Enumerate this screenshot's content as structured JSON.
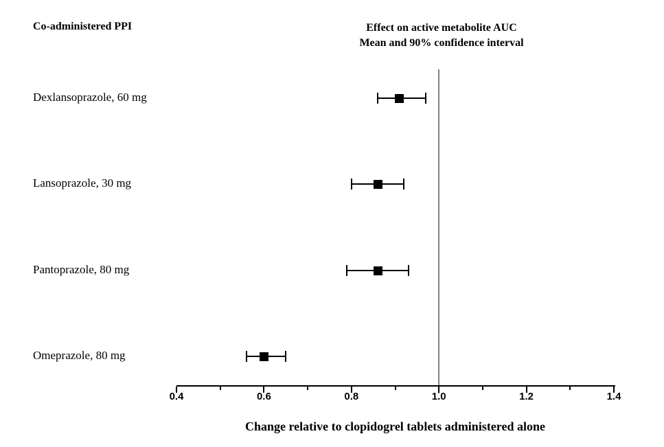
{
  "headers": {
    "left": "Co-administered PPI",
    "right_line1": "Effect on active metabolite AUC",
    "right_line2": "Mean and 90% confidence interval"
  },
  "chart_data": {
    "type": "scatter",
    "subtype": "forest-plot",
    "title": "Effect on active metabolite AUC, Mean and 90% confidence interval",
    "xlabel": "Change relative to clopidogrel tablets administered alone",
    "ci_level": "90%",
    "xlim": [
      0.4,
      1.4
    ],
    "grid": false,
    "reference_line_x": 1.0,
    "x_major_ticks": [
      {
        "value": 0.4,
        "label": "0.4"
      },
      {
        "value": 0.6,
        "label": "0.6"
      },
      {
        "value": 0.8,
        "label": "0.8"
      },
      {
        "value": 1.0,
        "label": "1.0"
      },
      {
        "value": 1.2,
        "label": "1.2"
      },
      {
        "value": 1.4,
        "label": "1.4"
      }
    ],
    "x_minor_ticks": [
      0.5,
      0.7,
      0.9,
      1.1,
      1.3
    ],
    "rows": [
      {
        "label": "Dexlansoprazole, 60 mg",
        "mean": 0.91,
        "ci_low": 0.86,
        "ci_high": 0.97
      },
      {
        "label": "Lansoprazole, 30 mg",
        "mean": 0.86,
        "ci_low": 0.8,
        "ci_high": 0.92
      },
      {
        "label": "Pantoprazole, 80 mg",
        "mean": 0.86,
        "ci_low": 0.79,
        "ci_high": 0.93
      },
      {
        "label": "Omeprazole, 80 mg",
        "mean": 0.6,
        "ci_low": 0.56,
        "ci_high": 0.65
      }
    ]
  },
  "colors": {
    "marker": "#000000",
    "error_bar": "#000000",
    "axis": "#000000",
    "reference_line": "#808080",
    "text": "#000000",
    "background": "#ffffff"
  }
}
